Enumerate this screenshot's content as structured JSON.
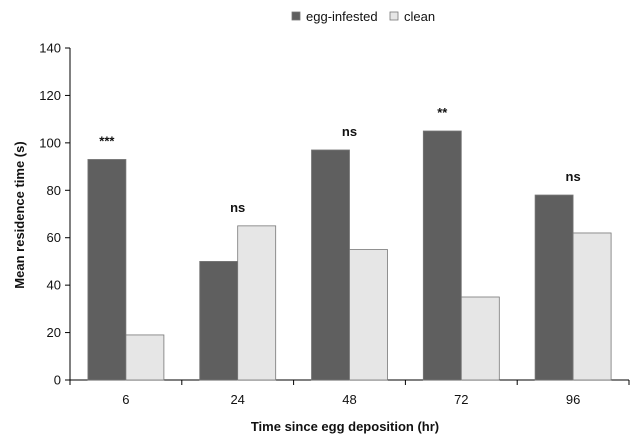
{
  "chart_data": {
    "type": "bar",
    "categories": [
      "6",
      "24",
      "48",
      "72",
      "96"
    ],
    "series": [
      {
        "name": "egg-infested",
        "values": [
          93,
          50,
          97,
          105,
          78
        ],
        "color": "#5f5f5f"
      },
      {
        "name": "clean",
        "values": [
          19,
          65,
          55,
          35,
          62
        ],
        "color": "#e6e6e6"
      }
    ],
    "annotations": [
      "***",
      "ns",
      "ns",
      "**",
      "ns"
    ],
    "xlabel": "Time since egg deposition (hr)",
    "ylabel": "Mean residence time (s)",
    "ylim": [
      0,
      140
    ],
    "yticks": [
      0,
      20,
      40,
      60,
      80,
      100,
      120,
      140
    ],
    "grid": false,
    "legend_position": "top-center"
  }
}
